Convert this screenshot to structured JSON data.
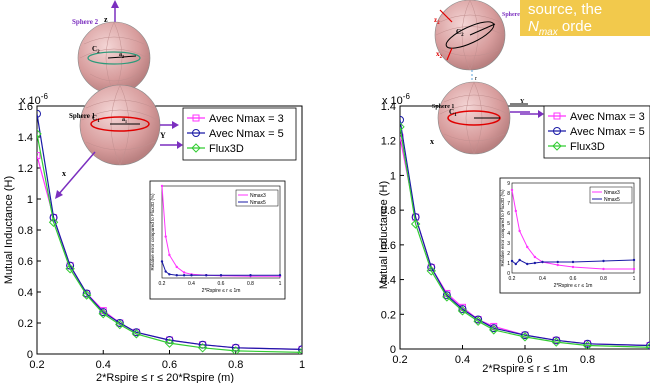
{
  "note": {
    "line1": "source, the",
    "line2_sym": "N",
    "line2_sub": "max",
    "line2_rest": " orde"
  },
  "colors": {
    "nmax3": "#ff33ff",
    "nmax5": "#1a1aa6",
    "flux3d": "#33cc33",
    "axis": "#000000",
    "sphere_fill": "#dfa6a6",
    "sphere_edge": "#777777",
    "note_bg": "#f2c94c"
  },
  "chart_data": [
    {
      "type": "line",
      "ylabel": "Mutual Inductance (H)",
      "xlabel": "2*Rspire ≤ r ≤ 20*Rspire (m)",
      "exponent_label": "x 10",
      "exponent_power": "-6",
      "xlim": [
        0.2,
        1.0
      ],
      "ylim": [
        0.0,
        1.6
      ],
      "xticks": [
        "0.2",
        "0.4",
        "0.6",
        "0.8",
        "1"
      ],
      "yticks": [
        "0",
        "0.2",
        "0.4",
        "0.6",
        "0.8",
        "1",
        "1.2",
        "1.4",
        "1.6"
      ],
      "legend": [
        "Avec Nmax = 3",
        "Avec Nmax = 5",
        "Flux3D"
      ],
      "series": [
        {
          "name": "Avec Nmax = 3",
          "marker": "square",
          "x": [
            0.2,
            0.25,
            0.3,
            0.35,
            0.4,
            0.45,
            0.5,
            0.6,
            0.7,
            0.8,
            1.0
          ],
          "y": [
            1.28,
            0.88,
            0.57,
            0.39,
            0.28,
            0.2,
            0.14,
            0.09,
            0.06,
            0.04,
            0.03
          ]
        },
        {
          "name": "Avec Nmax = 5",
          "marker": "circle",
          "x": [
            0.2,
            0.25,
            0.3,
            0.35,
            0.4,
            0.45,
            0.5,
            0.6,
            0.7,
            0.8,
            1.0
          ],
          "y": [
            1.55,
            0.88,
            0.57,
            0.39,
            0.27,
            0.2,
            0.14,
            0.09,
            0.06,
            0.04,
            0.03
          ]
        },
        {
          "name": "Flux3D",
          "marker": "diamond",
          "x": [
            0.2,
            0.25,
            0.3,
            0.35,
            0.4,
            0.45,
            0.5,
            0.6,
            0.7,
            0.8,
            1.0
          ],
          "y": [
            1.42,
            0.85,
            0.55,
            0.38,
            0.26,
            0.19,
            0.13,
            0.07,
            0.04,
            0.02,
            0.01
          ]
        }
      ],
      "inset": {
        "ylabel": "Relative error compared to Flux3D (%)",
        "xlabel": "2*Rspire ≤ r ≤ 1m",
        "xlim": [
          0.2,
          1.0
        ],
        "ylim": [
          0,
          10
        ],
        "xticks": [
          "0.2",
          "0.4",
          "0.6",
          "0.8",
          "1"
        ],
        "legend": [
          "Nmax3",
          "Nmax5"
        ],
        "series": [
          {
            "name": "Nmax3",
            "x": [
              0.2,
              0.225,
              0.25,
              0.3,
              0.35,
              0.4,
              0.5,
              0.6,
              0.8,
              1.0
            ],
            "y": [
              10,
              4.5,
              2.5,
              1.2,
              0.6,
              0.4,
              0.3,
              0.25,
              0.2,
              0.2
            ]
          },
          {
            "name": "Nmax5",
            "x": [
              0.2,
              0.225,
              0.25,
              0.3,
              0.35,
              0.4,
              0.5,
              0.6,
              0.8,
              1.0
            ],
            "y": [
              1.8,
              0.7,
              0.4,
              0.3,
              0.3,
              0.3,
              0.3,
              0.3,
              0.3,
              0.3
            ]
          }
        ]
      }
    },
    {
      "type": "line",
      "ylabel": "Mutual Inductance (H)",
      "xlabel": "2*Rspire ≤ r ≤ 1m",
      "exponent_label": "x 10",
      "exponent_power": "-6",
      "xlim": [
        0.2,
        1.0
      ],
      "ylim": [
        0.0,
        1.4
      ],
      "xticks": [
        "0.2",
        "0.4",
        "0.6",
        "0.8"
      ],
      "yticks": [
        "0",
        "0.2",
        "0.4",
        "0.6",
        "0.8",
        "1",
        "1.2",
        "1.4"
      ],
      "legend": [
        "Avec Nmax = 3",
        "Avec Nmax = 5",
        "Flux3D"
      ],
      "series": [
        {
          "name": "Avec Nmax = 3",
          "marker": "square",
          "x": [
            0.2,
            0.25,
            0.3,
            0.35,
            0.4,
            0.45,
            0.5,
            0.6,
            0.7,
            0.8,
            1.0
          ],
          "y": [
            1.22,
            0.76,
            0.47,
            0.32,
            0.24,
            0.17,
            0.13,
            0.08,
            0.05,
            0.03,
            0.02
          ]
        },
        {
          "name": "Avec Nmax = 5",
          "marker": "circle",
          "x": [
            0.2,
            0.25,
            0.3,
            0.35,
            0.4,
            0.45,
            0.5,
            0.6,
            0.7,
            0.8,
            1.0
          ],
          "y": [
            1.32,
            0.76,
            0.47,
            0.31,
            0.23,
            0.17,
            0.12,
            0.08,
            0.05,
            0.03,
            0.02
          ]
        },
        {
          "name": "Flux3D",
          "marker": "diamond",
          "x": [
            0.2,
            0.25,
            0.3,
            0.35,
            0.4,
            0.45,
            0.5,
            0.6,
            0.7,
            0.8,
            1.0
          ],
          "y": [
            1.28,
            0.72,
            0.45,
            0.3,
            0.22,
            0.16,
            0.11,
            0.07,
            0.04,
            0.02,
            0.01
          ]
        }
      ],
      "inset": {
        "ylabel": "Relative error compared to Flux3D (%)",
        "xlabel": "2*Rspire ≤ r ≤ 1m",
        "xlim": [
          0.2,
          1.0
        ],
        "ylim": [
          0,
          9
        ],
        "xticks": [
          "0.2",
          "0.4",
          "0.6",
          "0.8",
          "1"
        ],
        "yticks": [
          "0",
          "1",
          "2",
          "3",
          "4",
          "5",
          "6",
          "7",
          "8",
          "9"
        ],
        "legend": [
          "Nmax3",
          "Nmax5"
        ],
        "series": [
          {
            "name": "Nmax3",
            "x": [
              0.2,
              0.225,
              0.25,
              0.3,
              0.35,
              0.4,
              0.5,
              0.6,
              0.8,
              1.0
            ],
            "y": [
              8.3,
              6.2,
              4.2,
              2.6,
              1.6,
              1.1,
              0.8,
              0.6,
              0.4,
              0.4
            ]
          },
          {
            "name": "Nmax5",
            "x": [
              0.2,
              0.225,
              0.25,
              0.3,
              0.35,
              0.4,
              0.5,
              0.6,
              0.8,
              1.0
            ],
            "y": [
              1.2,
              0.9,
              1.3,
              0.9,
              1.0,
              1.1,
              1.1,
              1.1,
              1.2,
              1.3
            ]
          }
        ]
      }
    }
  ],
  "diagram_labels": {
    "sphere1": "Sphere 1",
    "sphere2": "Sphere 2",
    "z": "z",
    "y": "Y",
    "x": "x",
    "r": "r",
    "c1": "C",
    "c1_sub": "1",
    "c2": "C",
    "c2_sub": "2",
    "a1": "a",
    "a1_sub": "1",
    "a2": "a",
    "a2_sub": "2",
    "z2": "z",
    "z2_sub": "2",
    "x2": "x",
    "x2_sub": "2"
  }
}
